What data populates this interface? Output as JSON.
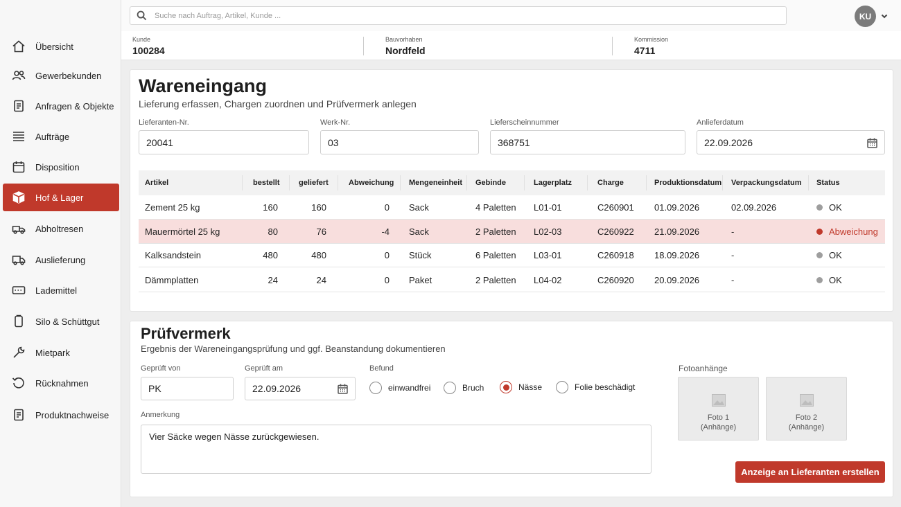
{
  "search": {
    "placeholder": "Suche nach Auftrag, Artikel, Kunde ..."
  },
  "user": {
    "initials": "KU"
  },
  "sidebar": {
    "items": [
      {
        "label": "Übersicht",
        "icon": "home-icon"
      },
      {
        "label": "Gewerbekunden",
        "icon": "users-icon"
      },
      {
        "label": "Anfragen & Objekte",
        "icon": "document-icon"
      },
      {
        "label": "Aufträge",
        "icon": "list-icon"
      },
      {
        "label": "Disposition",
        "icon": "calendar-icon"
      },
      {
        "label": "Hof & Lager",
        "icon": "box-icon",
        "active": true
      },
      {
        "label": "Abholtresen",
        "icon": "pickup-truck-icon"
      },
      {
        "label": "Auslieferung",
        "icon": "delivery-truck-icon"
      },
      {
        "label": "Lademittel",
        "icon": "pallet-icon"
      },
      {
        "label": "Silo & Schüttgut",
        "icon": "silo-icon"
      },
      {
        "label": "Mietpark",
        "icon": "wrench-icon"
      },
      {
        "label": "Rücknahmen",
        "icon": "return-icon"
      },
      {
        "label": "Produktnachweise",
        "icon": "certificate-icon"
      }
    ]
  },
  "context": {
    "kunde_label": "Kunde",
    "kunde_value": "100284",
    "bauvorhaben_label": "Bauvorhaben",
    "bauvorhaben_value": "Nordfeld",
    "kommission_label": "Kommission",
    "kommission_value": "4711"
  },
  "wareneingang": {
    "title": "Wareneingang",
    "subtitle": "Lieferung erfassen, Chargen zuordnen und Prüfvermerk anlegen",
    "fields": {
      "lieferant_label": "Lieferanten-Nr.",
      "lieferant_value": "20041",
      "werk_label": "Werk-Nr.",
      "werk_value": "03",
      "lieferschein_label": "Lieferscheinnummer",
      "lieferschein_value": "368751",
      "anliefer_label": "Anlieferdatum",
      "anliefer_value": "22.09.2026"
    },
    "table": {
      "headers": [
        "Artikel",
        "bestellt",
        "geliefert",
        "Abweichung",
        "Mengeneinheit",
        "Gebinde",
        "Lagerplatz",
        "Charge",
        "Produktionsdatum",
        "Verpackungsdatum",
        "Status"
      ],
      "rows": [
        {
          "artikel": "Zement 25 kg",
          "bestellt": "160",
          "geliefert": "160",
          "abweichung": "0",
          "einheit": "Sack",
          "gebinde": "4 Paletten",
          "lagerplatz": "L01-01",
          "charge": "C260901",
          "produktion": "01.09.2026",
          "verpackung": "02.09.2026",
          "status": "OK",
          "status_color": "#9e9e9e",
          "alert": false
        },
        {
          "artikel": "Mauermörtel 25 kg",
          "bestellt": "80",
          "geliefert": "76",
          "abweichung": "-4",
          "einheit": "Sack",
          "gebinde": "2 Paletten",
          "lagerplatz": "L02-03",
          "charge": "C260922",
          "produktion": "21.09.2026",
          "verpackung": "-",
          "status": "Abweichung",
          "status_color": "#c0392b",
          "alert": true
        },
        {
          "artikel": "Kalksandstein",
          "bestellt": "480",
          "geliefert": "480",
          "abweichung": "0",
          "einheit": "Stück",
          "gebinde": "6 Paletten",
          "lagerplatz": "L03-01",
          "charge": "C260918",
          "produktion": "18.09.2026",
          "verpackung": "-",
          "status": "OK",
          "status_color": "#9e9e9e",
          "alert": false
        },
        {
          "artikel": "Dämmplatten",
          "bestellt": "24",
          "geliefert": "24",
          "abweichung": "0",
          "einheit": "Paket",
          "gebinde": "2 Paletten",
          "lagerplatz": "L04-02",
          "charge": "C260920",
          "produktion": "20.09.2026",
          "verpackung": "-",
          "status": "OK",
          "status_color": "#9e9e9e",
          "alert": false
        }
      ]
    }
  },
  "pruefvermerk": {
    "title": "Prüfvermerk",
    "subtitle": "Ergebnis der Wareneingangsprüfung und ggf. Beanstandung dokumentieren",
    "geprueft_von_label": "Geprüft von",
    "geprueft_von_value": "PK",
    "geprueft_am_label": "Geprüft am",
    "geprueft_am_value": "22.09.2026",
    "befund_label": "Befund",
    "befund_options": [
      {
        "label": "einwandfrei",
        "selected": false
      },
      {
        "label": "Bruch",
        "selected": false
      },
      {
        "label": "Nässe",
        "selected": true
      },
      {
        "label": "Folie beschädigt",
        "selected": false
      }
    ],
    "anmerkung_label": "Anmerkung",
    "anmerkung_value": "Vier Säcke wegen Nässe zurückgewiesen.",
    "foto_label": "Fotoanhänge",
    "fotos": [
      {
        "line1": "Foto 1",
        "line2": "(Anhänge)"
      },
      {
        "line1": "Foto 2",
        "line2": "(Anhänge)"
      }
    ],
    "submit_label": "Anzeige an Lieferanten erstellen"
  },
  "colors": {
    "accent": "#c0392b",
    "alert_row": "#f8dedd",
    "ok_dot": "#9e9e9e"
  }
}
